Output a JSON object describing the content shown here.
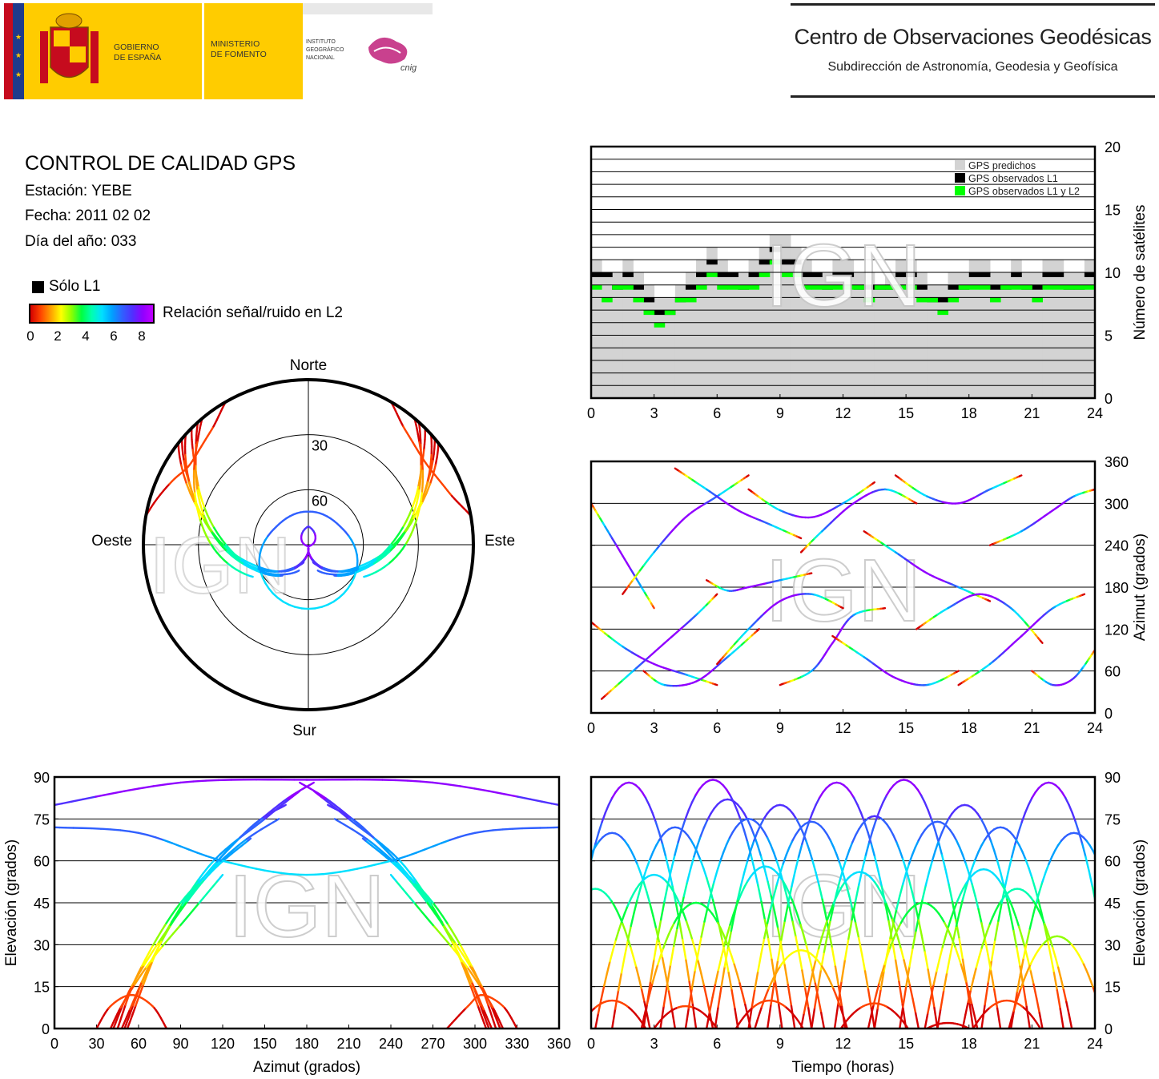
{
  "header": {
    "government_label": [
      "GOBIERNO",
      "DE ESPAÑA"
    ],
    "ministry_label": [
      "MINISTERIO",
      "DE FOMENTO"
    ],
    "institute_label": [
      "INSTITUTO",
      "GEOGRÁFICO",
      "NACIONAL"
    ],
    "cnig_logo_text": "cnig",
    "center_title": "Centro de Observaciones Geodésicas",
    "center_subtitle": "Subdirección de Astronomía, Geodesia y Geofísica"
  },
  "info": {
    "title": "CONTROL DE CALIDAD GPS",
    "station": "Estación: YEBE",
    "date": "Fecha: 2011 02 02",
    "doy": "Día del año: 033"
  },
  "legend": {
    "l1_only": "Sólo L1",
    "colorbar_label": "Relación señal/ruido en L2",
    "colorbar_ticks": [
      "0",
      "2",
      "4",
      "6",
      "8"
    ]
  },
  "colors": {
    "predicted": "#d3d3d3",
    "observed_l1": "#000000",
    "observed_l1_l2": "#00ff00",
    "snr_scale": [
      "#d40000",
      "#ff4400",
      "#ffa000",
      "#ffff00",
      "#90ff00",
      "#00ff40",
      "#00ffb0",
      "#00e0ff",
      "#00a0ff",
      "#3060ff",
      "#5030ff",
      "#9000ff"
    ]
  },
  "watermark": "IGN",
  "chart_data": [
    {
      "type": "area",
      "id": "satellite-count",
      "xlabel": "",
      "ylabel": "Número de satélites",
      "xlim": [
        0,
        24
      ],
      "ylim": [
        0,
        20
      ],
      "xticks": [
        "0",
        "3",
        "6",
        "9",
        "12",
        "15",
        "18",
        "21",
        "24"
      ],
      "yticks": [
        "0",
        "5",
        "10",
        "15",
        "20"
      ],
      "y_axis_side": "right",
      "grid": "horizontal every 1",
      "legend_position": "top-right",
      "legend": [
        "GPS predichos",
        "GPS observados L1",
        "GPS observados L1 y L2"
      ],
      "x": [
        0,
        0.5,
        1,
        1.5,
        2,
        2.5,
        3,
        3.5,
        4,
        4.5,
        5,
        5.5,
        6,
        6.5,
        7,
        7.5,
        8,
        8.5,
        9,
        9.5,
        10,
        10.5,
        11,
        11.5,
        12,
        12.5,
        13,
        13.5,
        14,
        14.5,
        15,
        15.5,
        16,
        16.5,
        17,
        17.5,
        18,
        18.5,
        19,
        19.5,
        20,
        20.5,
        21,
        21.5,
        22,
        22.5,
        23,
        23.5,
        24
      ],
      "series": [
        {
          "name": "GPS predichos",
          "values": [
            11,
            10,
            10,
            11,
            10,
            9,
            8,
            8,
            9,
            10,
            11,
            12,
            11,
            10,
            10,
            11,
            12,
            13,
            13,
            12,
            11,
            10,
            10,
            11,
            11,
            10,
            10,
            9,
            10,
            11,
            11,
            10,
            9,
            9,
            10,
            10,
            11,
            11,
            10,
            10,
            11,
            10,
            10,
            11,
            11,
            10,
            10,
            11,
            12
          ]
        },
        {
          "name": "GPS observados L1",
          "values": [
            10,
            10,
            9,
            10,
            9,
            8,
            7,
            7,
            8,
            9,
            10,
            11,
            10,
            10,
            9,
            10,
            11,
            12,
            11,
            11,
            10,
            10,
            9,
            10,
            10,
            9,
            9,
            9,
            9,
            10,
            10,
            9,
            8,
            8,
            9,
            9,
            10,
            10,
            9,
            9,
            10,
            9,
            9,
            10,
            10,
            9,
            9,
            10,
            11
          ]
        },
        {
          "name": "GPS observados L1 y L2",
          "values": [
            9,
            8,
            9,
            9,
            8,
            7,
            6,
            7,
            8,
            8,
            9,
            10,
            9,
            9,
            9,
            9,
            10,
            11,
            10,
            10,
            9,
            9,
            9,
            9,
            9,
            9,
            8,
            9,
            9,
            9,
            9,
            8,
            8,
            7,
            8,
            9,
            9,
            9,
            8,
            9,
            9,
            9,
            8,
            9,
            9,
            9,
            9,
            9,
            10
          ]
        }
      ]
    },
    {
      "type": "line",
      "id": "azimuth-vs-time",
      "xlabel": "",
      "ylabel": "Azimut (grados)",
      "xlim": [
        0,
        24
      ],
      "ylim": [
        0,
        360
      ],
      "xticks": [
        "0",
        "3",
        "6",
        "9",
        "12",
        "15",
        "18",
        "21",
        "24"
      ],
      "yticks": [
        "0",
        "60",
        "120",
        "180",
        "240",
        "300",
        "360"
      ],
      "y_axis_side": "right",
      "grid": "horizontal every 60",
      "series": [
        {
          "x": [
            0.0,
            1.0,
            2.0,
            3.0
          ],
          "values": [
            300,
            250,
            200,
            150
          ]
        },
        {
          "x": [
            0.0,
            1.5,
            3.0,
            4.5,
            6.0
          ],
          "values": [
            130,
            95,
            70,
            55,
            40
          ]
        },
        {
          "x": [
            0.5,
            2.0,
            3.5,
            5.0,
            6.0
          ],
          "values": [
            20,
            60,
            100,
            140,
            170
          ]
        },
        {
          "x": [
            1.5,
            3.0,
            4.5,
            6.0,
            7.5
          ],
          "values": [
            170,
            230,
            280,
            310,
            340
          ]
        },
        {
          "x": [
            2.5,
            3.5,
            5.0,
            6.5,
            8.0
          ],
          "values": [
            60,
            40,
            45,
            80,
            120
          ]
        },
        {
          "x": [
            4.0,
            5.5,
            7.0,
            8.5,
            10.0
          ],
          "values": [
            350,
            320,
            290,
            270,
            250
          ]
        },
        {
          "x": [
            5.5,
            6.5,
            7.5,
            9.0,
            10.5
          ],
          "values": [
            190,
            175,
            180,
            190,
            200
          ]
        },
        {
          "x": [
            6.0,
            7.5,
            9.0,
            10.5,
            12.0
          ],
          "values": [
            70,
            120,
            160,
            170,
            150
          ]
        },
        {
          "x": [
            7.5,
            9.0,
            10.5,
            12.0,
            13.5
          ],
          "values": [
            320,
            290,
            280,
            300,
            330
          ]
        },
        {
          "x": [
            9.0,
            10.5,
            11.5,
            12.5,
            14.0
          ],
          "values": [
            40,
            60,
            100,
            140,
            150
          ]
        },
        {
          "x": [
            10.0,
            11.0,
            12.5,
            14.0,
            15.5
          ],
          "values": [
            230,
            260,
            300,
            320,
            300
          ]
        },
        {
          "x": [
            11.5,
            13.0,
            14.5,
            16.0,
            17.5
          ],
          "values": [
            110,
            80,
            50,
            40,
            60
          ]
        },
        {
          "x": [
            13.0,
            14.5,
            16.0,
            17.5,
            19.0
          ],
          "values": [
            260,
            230,
            200,
            180,
            160
          ]
        },
        {
          "x": [
            14.5,
            16.0,
            17.5,
            19.0,
            20.5
          ],
          "values": [
            340,
            310,
            300,
            320,
            340
          ]
        },
        {
          "x": [
            15.5,
            17.0,
            18.5,
            20.0,
            21.5
          ],
          "values": [
            120,
            150,
            170,
            150,
            100
          ]
        },
        {
          "x": [
            17.5,
            19.0,
            20.5,
            22.0,
            23.5
          ],
          "values": [
            40,
            70,
            110,
            150,
            170
          ]
        },
        {
          "x": [
            19.0,
            20.5,
            22.0,
            23.0,
            24.0
          ],
          "values": [
            240,
            260,
            290,
            310,
            320
          ]
        },
        {
          "x": [
            21.0,
            22.0,
            23.0,
            24.0
          ],
          "values": [
            60,
            40,
            50,
            90
          ]
        }
      ]
    },
    {
      "type": "line",
      "id": "elevation-vs-azimuth",
      "xlabel": "Azimut (grados)",
      "ylabel": "Elevación (grados)",
      "xlim": [
        0,
        360
      ],
      "ylim": [
        0,
        90
      ],
      "xticks": [
        "0",
        "30",
        "60",
        "90",
        "120",
        "150",
        "180",
        "210",
        "240",
        "270",
        "300",
        "330",
        "360"
      ],
      "yticks": [
        "0",
        "15",
        "30",
        "45",
        "60",
        "75",
        "90"
      ],
      "grid": "horizontal every 15",
      "series": [
        {
          "x": [
            50,
            70,
            100,
            140,
            165
          ],
          "values": [
            0,
            25,
            50,
            72,
            80
          ]
        },
        {
          "x": [
            48,
            75,
            110,
            150,
            175
          ],
          "values": [
            0,
            30,
            58,
            75,
            85
          ]
        },
        {
          "x": [
            45,
            60,
            90,
            130,
            160
          ],
          "values": [
            0,
            20,
            45,
            65,
            75
          ]
        },
        {
          "x": [
            52,
            80,
            120,
            160,
            185
          ],
          "values": [
            0,
            35,
            62,
            80,
            88
          ]
        },
        {
          "x": [
            42,
            55,
            80,
            110,
            140
          ],
          "values": [
            0,
            15,
            35,
            55,
            68
          ]
        },
        {
          "x": [
            40,
            50,
            70,
            95,
            120
          ],
          "values": [
            0,
            10,
            25,
            40,
            55
          ]
        },
        {
          "x": [
            310,
            290,
            260,
            220,
            195
          ],
          "values": [
            0,
            25,
            50,
            72,
            80
          ]
        },
        {
          "x": [
            312,
            285,
            250,
            210,
            185
          ],
          "values": [
            0,
            30,
            58,
            75,
            85
          ]
        },
        {
          "x": [
            315,
            300,
            270,
            230,
            200
          ],
          "values": [
            0,
            20,
            45,
            65,
            75
          ]
        },
        {
          "x": [
            308,
            280,
            240,
            200,
            175
          ],
          "values": [
            0,
            35,
            62,
            80,
            88
          ]
        },
        {
          "x": [
            318,
            305,
            280,
            250,
            220
          ],
          "values": [
            0,
            15,
            35,
            55,
            68
          ]
        },
        {
          "x": [
            320,
            310,
            290,
            265,
            240
          ],
          "values": [
            0,
            10,
            25,
            40,
            55
          ]
        },
        {
          "x": [
            30,
            40,
            55,
            70,
            80
          ],
          "values": [
            0,
            8,
            12,
            8,
            0
          ]
        },
        {
          "x": [
            280,
            295,
            305,
            320,
            330
          ],
          "values": [
            0,
            8,
            12,
            8,
            0
          ]
        },
        {
          "x": [
            0,
            60,
            120,
            180,
            240,
            300,
            360
          ],
          "values": [
            72,
            70,
            60,
            55,
            60,
            70,
            72
          ]
        },
        {
          "x": [
            0,
            90,
            180,
            270,
            360
          ],
          "values": [
            80,
            88,
            89,
            88,
            80
          ]
        }
      ]
    },
    {
      "type": "line",
      "id": "elevation-vs-time",
      "xlabel": "Tiempo (horas)",
      "ylabel": "Elevación (grados)",
      "xlim": [
        0,
        24
      ],
      "ylim": [
        0,
        90
      ],
      "xticks": [
        "0",
        "3",
        "6",
        "9",
        "12",
        "15",
        "18",
        "21",
        "24"
      ],
      "yticks": [
        "0",
        "15",
        "30",
        "45",
        "60",
        "75",
        "90"
      ],
      "y_axis_side": "right",
      "grid": "horizontal every 15",
      "series": [
        {
          "peak_time": 1.8,
          "peak": 88,
          "half_width": 3.2
        },
        {
          "peak_time": 5.8,
          "peak": 89,
          "half_width": 3.3
        },
        {
          "peak_time": 6.5,
          "peak": 82,
          "half_width": 3.2
        },
        {
          "peak_time": 9.0,
          "peak": 80,
          "half_width": 3.1
        },
        {
          "peak_time": 11.7,
          "peak": 88,
          "half_width": 3.3
        },
        {
          "peak_time": 14.9,
          "peak": 89,
          "half_width": 3.3
        },
        {
          "peak_time": 17.8,
          "peak": 80,
          "half_width": 3.1
        },
        {
          "peak_time": 21.8,
          "peak": 88,
          "half_width": 3.2
        },
        {
          "peak_time": 1.0,
          "peak": 70,
          "half_width": 3.0
        },
        {
          "peak_time": 4.0,
          "peak": 72,
          "half_width": 3.0
        },
        {
          "peak_time": 7.5,
          "peak": 75,
          "half_width": 3.0
        },
        {
          "peak_time": 10.5,
          "peak": 74,
          "half_width": 3.0
        },
        {
          "peak_time": 13.5,
          "peak": 76,
          "half_width": 3.0
        },
        {
          "peak_time": 16.5,
          "peak": 74,
          "half_width": 3.0
        },
        {
          "peak_time": 19.5,
          "peak": 72,
          "half_width": 3.0
        },
        {
          "peak_time": 23.0,
          "peak": 70,
          "half_width": 3.0
        },
        {
          "peak_time": 3.0,
          "peak": 55,
          "half_width": 2.8
        },
        {
          "peak_time": 8.3,
          "peak": 58,
          "half_width": 2.8
        },
        {
          "peak_time": 12.8,
          "peak": 56,
          "half_width": 2.8
        },
        {
          "peak_time": 18.7,
          "peak": 57,
          "half_width": 2.8
        },
        {
          "peak_time": 0.2,
          "peak": 50,
          "half_width": 2.6
        },
        {
          "peak_time": 5.0,
          "peak": 45,
          "half_width": 2.6
        },
        {
          "peak_time": 15.8,
          "peak": 45,
          "half_width": 2.6
        },
        {
          "peak_time": 20.3,
          "peak": 50,
          "half_width": 2.6
        },
        {
          "peak_time": 10.0,
          "peak": 28,
          "half_width": 2.2
        },
        {
          "peak_time": 22.2,
          "peak": 33,
          "half_width": 2.3
        },
        {
          "peak_time": 1.0,
          "peak": 10,
          "half_width": 1.6
        },
        {
          "peak_time": 4.5,
          "peak": 8,
          "half_width": 1.5
        },
        {
          "peak_time": 8.5,
          "peak": 10,
          "half_width": 1.6
        },
        {
          "peak_time": 13.5,
          "peak": 9,
          "half_width": 1.6
        },
        {
          "peak_time": 17.0,
          "peak": 2,
          "half_width": 1.0
        },
        {
          "peak_time": 19.8,
          "peak": 10,
          "half_width": 1.6
        }
      ]
    },
    {
      "type": "scatter",
      "id": "skyplot",
      "cardinal_labels": {
        "north": "Norte",
        "south": "Sur",
        "east": "Este",
        "west": "Oeste"
      },
      "ring_labels": [
        "30",
        "60"
      ],
      "radial_axis": "elevation",
      "angular_axis": "azimuth",
      "tracks_source": "elevation-vs-azimuth"
    }
  ]
}
